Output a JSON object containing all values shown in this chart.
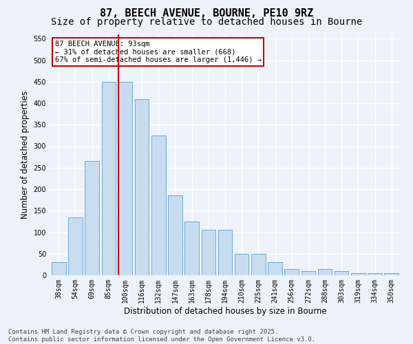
{
  "title1": "87, BEECH AVENUE, BOURNE, PE10 9RZ",
  "title2": "Size of property relative to detached houses in Bourne",
  "xlabel": "Distribution of detached houses by size in Bourne",
  "ylabel": "Number of detached properties",
  "categories": [
    "38sqm",
    "54sqm",
    "69sqm",
    "85sqm",
    "100sqm",
    "116sqm",
    "132sqm",
    "147sqm",
    "163sqm",
    "178sqm",
    "194sqm",
    "210sqm",
    "225sqm",
    "241sqm",
    "256sqm",
    "272sqm",
    "288sqm",
    "303sqm",
    "319sqm",
    "334sqm",
    "350sqm"
  ],
  "values": [
    30,
    135,
    265,
    450,
    450,
    410,
    325,
    185,
    125,
    105,
    105,
    50,
    50,
    30,
    15,
    10,
    15,
    10,
    5,
    5,
    5
  ],
  "bar_color": "#c8dcf0",
  "bar_edge_color": "#6aaad4",
  "vline_x_index": 3.57,
  "vline_color": "#cc0000",
  "annotation_text": "87 BEECH AVENUE: 93sqm\n← 31% of detached houses are smaller (668)\n67% of semi-detached houses are larger (1,446) →",
  "annotation_box_facecolor": "#ffffff",
  "annotation_box_edgecolor": "#cc0000",
  "ylim": [
    0,
    560
  ],
  "yticks": [
    0,
    50,
    100,
    150,
    200,
    250,
    300,
    350,
    400,
    450,
    500,
    550
  ],
  "footer": "Contains HM Land Registry data © Crown copyright and database right 2025.\nContains public sector information licensed under the Open Government Licence v3.0.",
  "bg_color": "#eef2fa",
  "grid_color": "#ffffff",
  "title1_fontsize": 11,
  "title2_fontsize": 10,
  "axis_label_fontsize": 8.5,
  "tick_fontsize": 7,
  "annot_fontsize": 7.5,
  "footer_fontsize": 6.5
}
